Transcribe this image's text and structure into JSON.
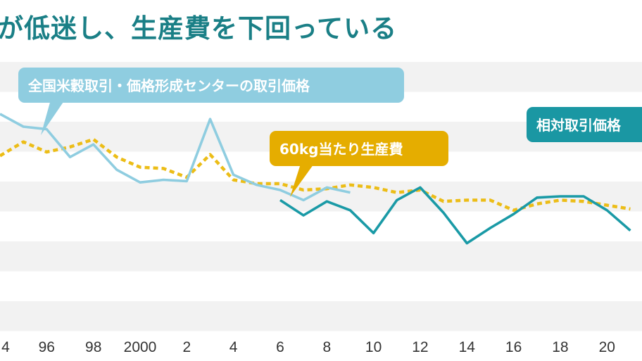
{
  "title": "が低迷し、生産費を下回っている",
  "colors": {
    "background": "#ffffff",
    "band": "#f2f2f2",
    "title": "#1a7f86",
    "center_price": "#8fcde0",
    "production_cost": "#ecbd17",
    "relative_price": "#1a9aa6",
    "center_label_bg": "#8fcde0",
    "cost_label_bg": "#e5ad00",
    "relative_label_bg": "#1a97a3"
  },
  "chart_data": {
    "type": "line",
    "xlabel": "",
    "ylabel": "",
    "x_ticks": [
      "4",
      "96",
      "98",
      "2000",
      "2",
      "4",
      "6",
      "8",
      "10",
      "12",
      "14",
      "16",
      "18",
      "20"
    ],
    "x_tick_years": [
      1994,
      1996,
      1998,
      2000,
      2002,
      2004,
      2006,
      2008,
      2010,
      2012,
      2014,
      2016,
      2018,
      2020
    ],
    "xlim": [
      1994,
      2021.5
    ],
    "ylim": [
      0,
      100
    ],
    "grid": "alternating horizontal bands",
    "series": [
      {
        "name": "全国米穀取引・価格形成センターの取引価格",
        "style": "solid",
        "x": [
          1994,
          1995,
          1996,
          1997,
          1998,
          1999,
          2000,
          2001,
          2002,
          2003,
          2004,
          2005,
          2006,
          2007,
          2008,
          2009
        ],
        "y": [
          80,
          75,
          74,
          63,
          68,
          58,
          53,
          54,
          53.5,
          78,
          56,
          52,
          50,
          46,
          51,
          49
        ]
      },
      {
        "name": "60kg当たり生産費",
        "style": "dotted",
        "x": [
          1994,
          1995,
          1996,
          1997,
          1998,
          1999,
          2000,
          2001,
          2002,
          2003,
          2004,
          2005,
          2006,
          2007,
          2008,
          2009,
          2010,
          2011,
          2012,
          2013,
          2014,
          2015,
          2016,
          2017,
          2018,
          2019,
          2020,
          2021
        ],
        "y": [
          63.5,
          69,
          65,
          67,
          70,
          63,
          59,
          58.5,
          55,
          64,
          54,
          52.5,
          52.5,
          50,
          50.5,
          52,
          51,
          49,
          50,
          45.5,
          46,
          46,
          42,
          44.5,
          46,
          45.5,
          44,
          42.5
        ]
      },
      {
        "name": "相対取引価格",
        "style": "solid",
        "x": [
          2006,
          2007,
          2008,
          2009,
          2010,
          2011,
          2012,
          2013,
          2014,
          2015,
          2016,
          2017,
          2018,
          2019,
          2020,
          2021
        ],
        "y": [
          46,
          40,
          45.5,
          42,
          33,
          46,
          51,
          41,
          29,
          35,
          40.5,
          47,
          47.5,
          47.5,
          42,
          34
        ]
      }
    ]
  }
}
